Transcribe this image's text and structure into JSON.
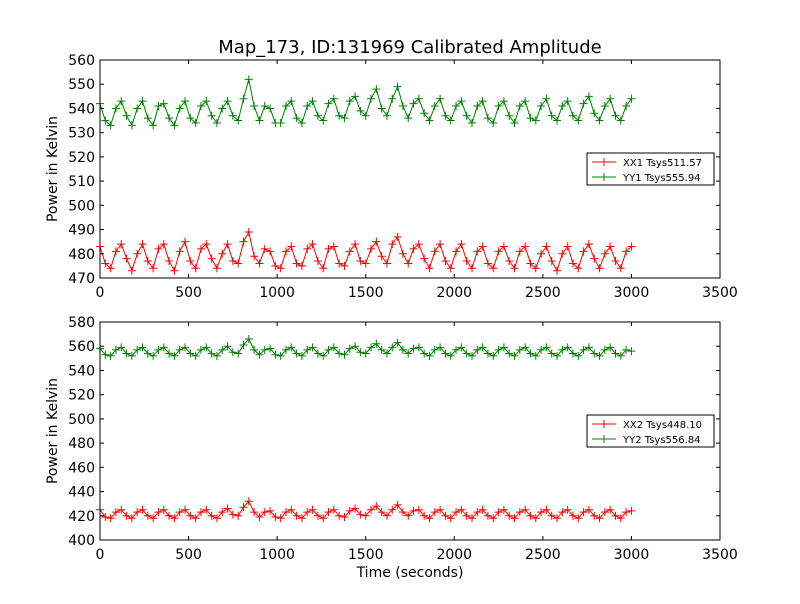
{
  "title": "Map_173, ID:131969 Calibrated Amplitude",
  "colors": {
    "red": "#ff0000",
    "green": "#008000",
    "axis": "#000000",
    "background": "#ffffff"
  },
  "chart_data": [
    {
      "type": "scatter",
      "title": "Map_173, ID:131969 Calibrated Amplitude",
      "xlabel": "",
      "ylabel": "Power in Kelvin",
      "xlim": [
        0,
        3500
      ],
      "ylim": [
        470,
        560
      ],
      "xticks": [
        0,
        500,
        1000,
        1500,
        2000,
        2500,
        3000,
        3500
      ],
      "yticks": [
        470,
        480,
        490,
        500,
        510,
        520,
        530,
        540,
        550,
        560
      ],
      "legend_position": "center-right",
      "marker": "+",
      "grid": false,
      "series": [
        {
          "name": "XX1 Tsys511.57",
          "color": "#ff0000",
          "x": [
            0,
            30,
            60,
            90,
            120,
            150,
            180,
            210,
            240,
            270,
            300,
            330,
            360,
            390,
            420,
            450,
            480,
            510,
            540,
            570,
            600,
            630,
            660,
            690,
            720,
            750,
            780,
            810,
            840,
            870,
            900,
            930,
            960,
            990,
            1020,
            1050,
            1080,
            1110,
            1140,
            1170,
            1200,
            1230,
            1260,
            1290,
            1320,
            1350,
            1380,
            1410,
            1440,
            1470,
            1500,
            1530,
            1560,
            1590,
            1620,
            1650,
            1680,
            1710,
            1740,
            1770,
            1800,
            1830,
            1860,
            1890,
            1920,
            1950,
            1980,
            2010,
            2040,
            2070,
            2100,
            2130,
            2160,
            2190,
            2220,
            2250,
            2280,
            2310,
            2340,
            2370,
            2400,
            2430,
            2460,
            2490,
            2520,
            2550,
            2580,
            2610,
            2640,
            2670,
            2700,
            2730,
            2760,
            2790,
            2820,
            2850,
            2880,
            2910,
            2940,
            2970,
            3000
          ],
          "y": [
            483,
            476,
            474,
            481,
            484,
            478,
            473,
            480,
            484,
            477,
            474,
            482,
            484,
            477,
            473,
            481,
            485,
            477,
            474,
            482,
            484,
            478,
            474,
            480,
            484,
            477,
            476,
            485,
            489,
            479,
            476,
            482,
            481,
            475,
            474,
            481,
            483,
            476,
            475,
            482,
            484,
            477,
            474,
            482,
            483,
            476,
            475,
            481,
            484,
            477,
            476,
            482,
            485,
            479,
            476,
            484,
            487,
            480,
            476,
            482,
            484,
            478,
            474,
            481,
            484,
            477,
            474,
            481,
            484,
            477,
            474,
            481,
            483,
            476,
            474,
            481,
            483,
            477,
            474,
            481,
            483,
            476,
            474,
            480,
            483,
            477,
            473,
            480,
            483,
            476,
            474,
            481,
            484,
            478,
            474,
            480,
            483,
            477,
            474,
            481,
            483
          ]
        },
        {
          "name": "YY1 Tsys555.94",
          "color": "#008000",
          "x": [
            0,
            30,
            60,
            90,
            120,
            150,
            180,
            210,
            240,
            270,
            300,
            330,
            360,
            390,
            420,
            450,
            480,
            510,
            540,
            570,
            600,
            630,
            660,
            690,
            720,
            750,
            780,
            810,
            840,
            870,
            900,
            930,
            960,
            990,
            1020,
            1050,
            1080,
            1110,
            1140,
            1170,
            1200,
            1230,
            1260,
            1290,
            1320,
            1350,
            1380,
            1410,
            1440,
            1470,
            1500,
            1530,
            1560,
            1590,
            1620,
            1650,
            1680,
            1710,
            1740,
            1770,
            1800,
            1830,
            1860,
            1890,
            1920,
            1950,
            1980,
            2010,
            2040,
            2070,
            2100,
            2130,
            2160,
            2190,
            2220,
            2250,
            2280,
            2310,
            2340,
            2370,
            2400,
            2430,
            2460,
            2490,
            2520,
            2550,
            2580,
            2610,
            2640,
            2670,
            2700,
            2730,
            2760,
            2790,
            2820,
            2850,
            2880,
            2910,
            2940,
            2970,
            3000
          ],
          "y": [
            542,
            535,
            533,
            540,
            543,
            537,
            533,
            540,
            543,
            536,
            533,
            541,
            542,
            536,
            533,
            540,
            543,
            536,
            534,
            541,
            543,
            537,
            534,
            540,
            543,
            537,
            535,
            544,
            552,
            541,
            535,
            541,
            540,
            534,
            534,
            541,
            543,
            536,
            534,
            541,
            543,
            537,
            535,
            542,
            544,
            537,
            536,
            543,
            545,
            539,
            537,
            544,
            548,
            540,
            537,
            544,
            549,
            541,
            536,
            542,
            544,
            538,
            535,
            541,
            544,
            537,
            535,
            541,
            543,
            537,
            534,
            541,
            543,
            536,
            534,
            541,
            543,
            537,
            534,
            541,
            543,
            536,
            535,
            541,
            544,
            537,
            535,
            541,
            543,
            537,
            535,
            542,
            545,
            538,
            535,
            541,
            544,
            537,
            535,
            541,
            544
          ]
        }
      ]
    },
    {
      "type": "scatter",
      "title": "",
      "xlabel": "Time (seconds)",
      "ylabel": "Power in Kelvin",
      "xlim": [
        0,
        3500
      ],
      "ylim": [
        400,
        580
      ],
      "xticks": [
        0,
        500,
        1000,
        1500,
        2000,
        2500,
        3000,
        3500
      ],
      "yticks": [
        400,
        420,
        440,
        460,
        480,
        500,
        520,
        540,
        560,
        580
      ],
      "legend_position": "center-right",
      "marker": "+",
      "grid": false,
      "series": [
        {
          "name": "XX2 Tsys448.10",
          "color": "#ff0000",
          "x": [
            0,
            30,
            60,
            90,
            120,
            150,
            180,
            210,
            240,
            270,
            300,
            330,
            360,
            390,
            420,
            450,
            480,
            510,
            540,
            570,
            600,
            630,
            660,
            690,
            720,
            750,
            780,
            810,
            840,
            870,
            900,
            930,
            960,
            990,
            1020,
            1050,
            1080,
            1110,
            1140,
            1170,
            1200,
            1230,
            1260,
            1290,
            1320,
            1350,
            1380,
            1410,
            1440,
            1470,
            1500,
            1530,
            1560,
            1590,
            1620,
            1650,
            1680,
            1710,
            1740,
            1770,
            1800,
            1830,
            1860,
            1890,
            1920,
            1950,
            1980,
            2010,
            2040,
            2070,
            2100,
            2130,
            2160,
            2190,
            2220,
            2250,
            2280,
            2310,
            2340,
            2370,
            2400,
            2430,
            2460,
            2490,
            2520,
            2550,
            2580,
            2610,
            2640,
            2670,
            2700,
            2730,
            2760,
            2790,
            2820,
            2850,
            2880,
            2910,
            2940,
            2970,
            3000
          ],
          "y": [
            425,
            419,
            418,
            423,
            425,
            420,
            418,
            423,
            425,
            420,
            418,
            423,
            425,
            420,
            418,
            423,
            425,
            420,
            418,
            423,
            425,
            420,
            418,
            423,
            426,
            421,
            420,
            427,
            432,
            423,
            419,
            423,
            424,
            419,
            418,
            423,
            425,
            420,
            418,
            423,
            425,
            420,
            418,
            423,
            425,
            420,
            419,
            424,
            426,
            421,
            420,
            425,
            428,
            423,
            420,
            425,
            429,
            423,
            420,
            424,
            425,
            420,
            418,
            423,
            425,
            420,
            418,
            423,
            425,
            420,
            418,
            423,
            425,
            420,
            418,
            423,
            425,
            420,
            418,
            423,
            425,
            420,
            418,
            423,
            425,
            420,
            418,
            423,
            425,
            420,
            418,
            423,
            425,
            420,
            418,
            423,
            425,
            420,
            418,
            423,
            424
          ]
        },
        {
          "name": "YY2 Tsys556.84",
          "color": "#008000",
          "x": [
            0,
            30,
            60,
            90,
            120,
            150,
            180,
            210,
            240,
            270,
            300,
            330,
            360,
            390,
            420,
            450,
            480,
            510,
            540,
            570,
            600,
            630,
            660,
            690,
            720,
            750,
            780,
            810,
            840,
            870,
            900,
            930,
            960,
            990,
            1020,
            1050,
            1080,
            1110,
            1140,
            1170,
            1200,
            1230,
            1260,
            1290,
            1320,
            1350,
            1380,
            1410,
            1440,
            1470,
            1500,
            1530,
            1560,
            1590,
            1620,
            1650,
            1680,
            1710,
            1740,
            1770,
            1800,
            1830,
            1860,
            1890,
            1920,
            1950,
            1980,
            2010,
            2040,
            2070,
            2100,
            2130,
            2160,
            2190,
            2220,
            2250,
            2280,
            2310,
            2340,
            2370,
            2400,
            2430,
            2460,
            2490,
            2520,
            2550,
            2580,
            2610,
            2640,
            2670,
            2700,
            2730,
            2760,
            2790,
            2820,
            2850,
            2880,
            2910,
            2940,
            2970,
            3000
          ],
          "y": [
            558,
            553,
            552,
            557,
            559,
            554,
            552,
            557,
            559,
            554,
            552,
            557,
            559,
            554,
            552,
            557,
            559,
            554,
            552,
            557,
            559,
            554,
            552,
            557,
            560,
            555,
            554,
            561,
            566,
            557,
            553,
            557,
            558,
            553,
            552,
            557,
            559,
            554,
            552,
            557,
            559,
            554,
            552,
            557,
            559,
            554,
            553,
            558,
            560,
            555,
            554,
            559,
            562,
            557,
            554,
            559,
            563,
            557,
            554,
            558,
            559,
            554,
            552,
            557,
            559,
            554,
            552,
            557,
            559,
            554,
            552,
            557,
            559,
            554,
            552,
            557,
            559,
            554,
            552,
            557,
            559,
            554,
            552,
            557,
            559,
            554,
            552,
            557,
            559,
            554,
            552,
            557,
            559,
            554,
            552,
            557,
            559,
            554,
            552,
            557,
            556
          ]
        }
      ]
    }
  ]
}
